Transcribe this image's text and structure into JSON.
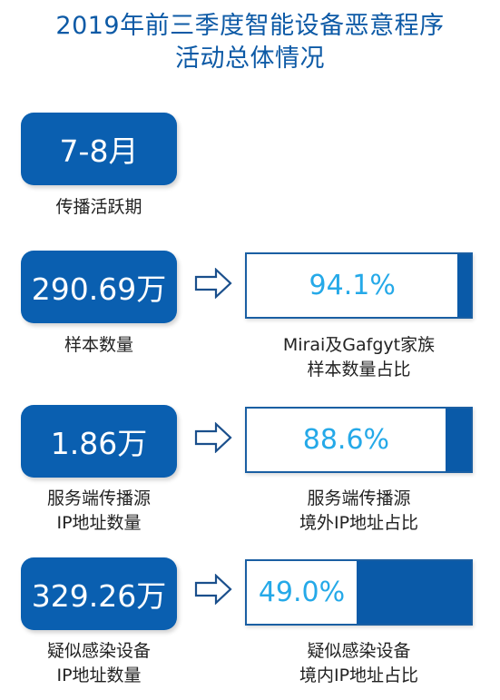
{
  "title": {
    "line1": "2019年前三季度智能设备恶意程序",
    "line2": "活动总体情况"
  },
  "colors": {
    "primary": "#0a5fb0",
    "title": "#0d5aa6",
    "percent_text": "#25a9e8"
  },
  "stat_active": {
    "value": "7-8月",
    "label": "传播活跃期"
  },
  "stat_samples": {
    "value": "290.69万",
    "label": "样本数量",
    "bar_label_line1": "Mirai及Gafgyt家族",
    "bar_label_line2": "样本数量占比",
    "percent_text": "94.1%",
    "percent": 94.1
  },
  "stat_server_ips": {
    "value": "1.86万",
    "label_line1": "服务端传播源",
    "label_line2": "IP地址数量",
    "bar_label_line1": "服务端传播源",
    "bar_label_line2": "境外IP地址占比",
    "percent_text": "88.6%",
    "percent": 88.6
  },
  "stat_infected_ips": {
    "value": "329.26万",
    "label_line1": "疑似感染设备",
    "label_line2": "IP地址数量",
    "bar_label_line1": "疑似感染设备",
    "bar_label_line2": "境内IP地址占比",
    "percent_text": "49.0%",
    "percent": 49.0
  },
  "icons": {
    "arrow": "right-arrow-icon"
  }
}
